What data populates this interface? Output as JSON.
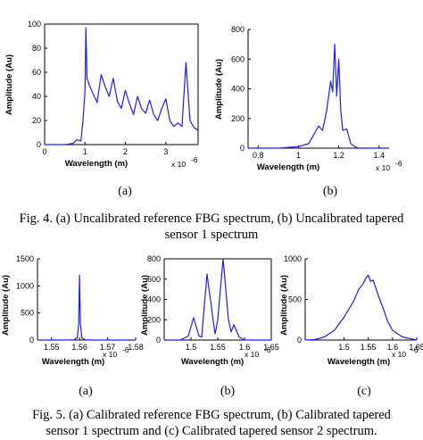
{
  "chart_data": [
    {
      "id": "fig4a",
      "type": "line",
      "title": "",
      "xlabel": "Wavelength (m)",
      "ylabel": "Amplitude (Au)",
      "x_exponent_label": "x 10",
      "x_exponent_power": "-6",
      "xlim": [
        0,
        3.8
      ],
      "ylim": [
        0,
        100
      ],
      "xticks": [
        0,
        1,
        2,
        3
      ],
      "yticks": [
        0,
        20,
        40,
        60,
        80,
        100
      ],
      "series": [
        {
          "color": "#1a1aff",
          "x": [
            0,
            0.5,
            0.7,
            0.8,
            0.9,
            0.95,
            1.0,
            1.02,
            1.05,
            1.1,
            1.2,
            1.3,
            1.4,
            1.5,
            1.6,
            1.7,
            1.8,
            1.9,
            2.0,
            2.1,
            2.2,
            2.3,
            2.4,
            2.5,
            2.6,
            2.7,
            2.8,
            2.9,
            3.0,
            3.1,
            3.2,
            3.3,
            3.4,
            3.5,
            3.6,
            3.7,
            3.8
          ],
          "y": [
            0,
            0,
            1,
            4,
            3,
            20,
            45,
            97,
            55,
            50,
            42,
            35,
            58,
            48,
            40,
            55,
            36,
            30,
            45,
            34,
            25,
            40,
            30,
            26,
            37,
            25,
            20,
            30,
            38,
            20,
            15,
            18,
            15,
            68,
            20,
            14,
            12
          ]
        }
      ]
    },
    {
      "id": "fig4b",
      "type": "line",
      "title": "",
      "xlabel": "Wavelength (m)",
      "ylabel": "Amplitude (Au)",
      "x_exponent_label": "x 10",
      "x_exponent_power": "-6",
      "xlim": [
        0.75,
        1.45
      ],
      "ylim": [
        0,
        800
      ],
      "xticks": [
        0.8,
        1,
        1.2,
        1.4
      ],
      "yticks": [
        0,
        200,
        400,
        600,
        800
      ],
      "series": [
        {
          "color": "#1a1aff",
          "x": [
            0.75,
            0.9,
            1.0,
            1.05,
            1.08,
            1.1,
            1.12,
            1.14,
            1.16,
            1.17,
            1.18,
            1.19,
            1.2,
            1.21,
            1.22,
            1.24,
            1.26,
            1.28,
            1.3,
            1.45
          ],
          "y": [
            0,
            0,
            10,
            30,
            100,
            150,
            120,
            250,
            450,
            380,
            700,
            350,
            600,
            260,
            120,
            130,
            30,
            10,
            0,
            0
          ]
        }
      ]
    },
    {
      "id": "fig5a",
      "type": "line",
      "title": "",
      "xlabel": "Wavelength (m)",
      "ylabel": "Amplitude (Au)",
      "x_exponent_label": "x 10",
      "x_exponent_power": "-6",
      "xlim": [
        1.545,
        1.58
      ],
      "ylim": [
        0,
        1500
      ],
      "xticks": [
        1.55,
        1.56,
        1.57,
        1.58
      ],
      "yticks": [
        0,
        500,
        1000,
        1500
      ],
      "series": [
        {
          "color": "#1a1aff",
          "x": [
            1.545,
            1.555,
            1.558,
            1.5592,
            1.5597,
            1.56,
            1.5603,
            1.5608,
            1.562,
            1.565,
            1.58
          ],
          "y": [
            0,
            0,
            5,
            40,
            300,
            1200,
            300,
            40,
            5,
            0,
            0
          ]
        }
      ]
    },
    {
      "id": "fig5b",
      "type": "line",
      "title": "",
      "xlabel": "Wavelength (m)",
      "ylabel": "Amplitude (Au)",
      "x_exponent_label": "x 10",
      "x_exponent_power": "-6",
      "xlim": [
        1.45,
        1.65
      ],
      "ylim": [
        0,
        800
      ],
      "xticks": [
        1.5,
        1.55,
        1.6,
        1.65
      ],
      "yticks": [
        0,
        200,
        400,
        600,
        800
      ],
      "series": [
        {
          "color": "#1a1aff",
          "x": [
            1.45,
            1.48,
            1.495,
            1.505,
            1.515,
            1.52,
            1.53,
            1.54,
            1.545,
            1.55,
            1.56,
            1.57,
            1.575,
            1.58,
            1.59,
            1.6,
            1.65
          ],
          "y": [
            0,
            0,
            40,
            220,
            40,
            30,
            650,
            250,
            60,
            200,
            800,
            200,
            80,
            150,
            30,
            0,
            0
          ]
        }
      ]
    },
    {
      "id": "fig5c",
      "type": "line",
      "title": "",
      "xlabel": "Wavelength (m)",
      "ylabel": "Amplitude (Au)",
      "x_exponent_label": "x 10",
      "x_exponent_power": "-6",
      "xlim": [
        1.42,
        1.65
      ],
      "ylim": [
        0,
        1000
      ],
      "xticks": [
        1.5,
        1.55,
        1.6,
        1.65
      ],
      "yticks": [
        0,
        500,
        1000
      ],
      "series": [
        {
          "color": "#1a1aff",
          "x": [
            1.42,
            1.44,
            1.46,
            1.48,
            1.5,
            1.52,
            1.53,
            1.54,
            1.545,
            1.55,
            1.555,
            1.56,
            1.57,
            1.58,
            1.59,
            1.6,
            1.62,
            1.65
          ],
          "y": [
            0,
            5,
            40,
            120,
            280,
            480,
            620,
            700,
            760,
            800,
            720,
            740,
            560,
            400,
            230,
            120,
            40,
            0
          ]
        }
      ]
    }
  ],
  "sublabels": {
    "fig4a": "(a)",
    "fig4b": "(b)",
    "fig5a": "(a)",
    "fig5b": "(b)",
    "fig5c": "(c)"
  },
  "captions": {
    "fig4_line1": "Fig. 4. (a) Uncalibrated reference FBG spectrum, (b) Uncalibrated tapered",
    "fig4_line2": "sensor 1 spectrum",
    "fig5_line1": "Fig. 5. (a) Calibrated reference FBG spectrum, (b) Calibrated tapered",
    "fig5_line2": "sensor 1 spectrum and (c) Calibrated tapered sensor 2 spectrum."
  }
}
